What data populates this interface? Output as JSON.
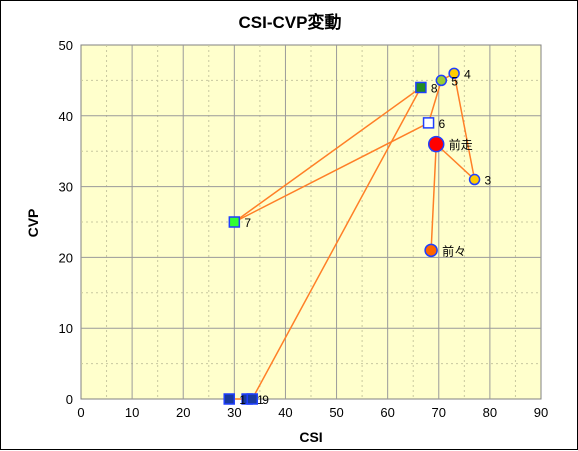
{
  "chart_data": {
    "type": "scatter",
    "title": "CSI-CVP変動",
    "xlabel": "CSI",
    "ylabel": "CVP",
    "xlim": [
      0,
      90
    ],
    "ylim": [
      0,
      50
    ],
    "xticks": [
      0,
      10,
      20,
      30,
      40,
      50,
      60,
      70,
      80,
      90
    ],
    "yticks": [
      0,
      10,
      20,
      30,
      40,
      50
    ],
    "grid": true,
    "colors": {
      "plot_background": "#ffffcc",
      "grid": "#9a9a9a",
      "line": "#ff7f27"
    },
    "path_order": [
      "前々",
      "前走",
      "3",
      "4",
      "5",
      "6",
      "7",
      "8",
      "9",
      "1",
      "1"
    ],
    "points": [
      {
        "label": "前々",
        "x": 68.5,
        "y": 21,
        "shape": "circle",
        "fill": "#ff6600",
        "stroke": "#1f3fff",
        "size": "medium"
      },
      {
        "label": "前走",
        "x": 69.5,
        "y": 36,
        "shape": "circle",
        "fill": "#ff0000",
        "stroke": "#1f3fff",
        "size": "large"
      },
      {
        "label": "3",
        "x": 77,
        "y": 31,
        "shape": "circle",
        "fill": "#ffcc00",
        "stroke": "#1f3fff",
        "size": "small"
      },
      {
        "label": "4",
        "x": 73,
        "y": 46,
        "shape": "circle",
        "fill": "#ffcc00",
        "stroke": "#1f3fff",
        "size": "small"
      },
      {
        "label": "5",
        "x": 70.5,
        "y": 45,
        "shape": "circle",
        "fill": "#99cc33",
        "stroke": "#1f3fff",
        "size": "small"
      },
      {
        "label": "6",
        "x": 68,
        "y": 39,
        "shape": "square",
        "fill": "#ffffff",
        "stroke": "#1f3fff",
        "size": "small"
      },
      {
        "label": "7",
        "x": 30,
        "y": 25,
        "shape": "square",
        "fill": "#33ff33",
        "stroke": "#1f3fff",
        "size": "small"
      },
      {
        "label": "8",
        "x": 66.5,
        "y": 44,
        "shape": "square",
        "fill": "#228b22",
        "stroke": "#1f3fff",
        "size": "small"
      },
      {
        "label": "9",
        "x": 33.5,
        "y": 0,
        "shape": "square",
        "fill": "#1a3aa0",
        "stroke": "#1f3fff",
        "size": "small"
      },
      {
        "label": "1",
        "x": 32.5,
        "y": 0,
        "shape": "square",
        "fill": "#1a3aa0",
        "stroke": "#1f3fff",
        "size": "small"
      },
      {
        "label": "1",
        "x": 29,
        "y": 0,
        "shape": "square",
        "fill": "#1a3aa0",
        "stroke": "#1f3fff",
        "size": "small"
      }
    ]
  }
}
